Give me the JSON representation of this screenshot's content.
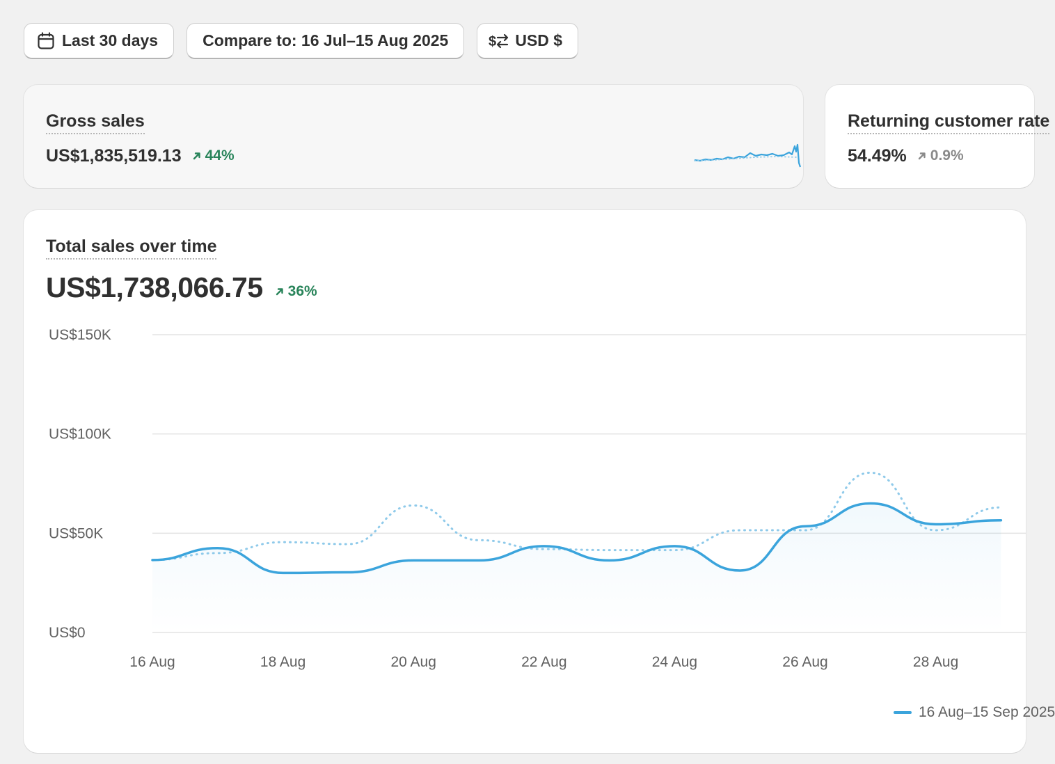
{
  "filters": {
    "date_range": {
      "label": "Last 30 days",
      "icon": "calendar-icon"
    },
    "compare": {
      "label": "Compare to: 16 Jul–15 Aug 2025"
    },
    "currency": {
      "label": "USD $",
      "icon": "swap-arrows-icon"
    }
  },
  "metrics": [
    {
      "title": "Gross sales",
      "value": "US$1,835,519.13",
      "delta": "44%",
      "trend": "up"
    },
    {
      "title": "Returning customer rate",
      "value": "54.49%",
      "delta": "0.9%",
      "trend": "up"
    }
  ],
  "sales_card": {
    "title": "Total sales over time",
    "value": "US$1,738,066.75",
    "delta": "36%"
  },
  "legend": {
    "current_label": "16 Aug–15 Sep 2025"
  },
  "colors": {
    "accent": "#3ba4dc",
    "positive": "#29845a",
    "neutral": "#8a8a8a"
  },
  "chart_data": {
    "type": "line",
    "x": [
      "16 Aug",
      "17 Aug",
      "18 Aug",
      "19 Aug",
      "20 Aug",
      "21 Aug",
      "22 Aug",
      "23 Aug",
      "24 Aug",
      "25 Aug",
      "26 Aug",
      "27 Aug",
      "28 Aug",
      "29 Aug"
    ],
    "x_tick_labels": [
      "16 Aug",
      "18 Aug",
      "20 Aug",
      "22 Aug",
      "24 Aug",
      "26 Aug",
      "28 Aug"
    ],
    "y_tick_labels": [
      "US$0",
      "US$50K",
      "US$100K",
      "US$150K"
    ],
    "y_ticks": [
      0,
      50000,
      100000,
      150000
    ],
    "ylim": [
      0,
      150000
    ],
    "grid": true,
    "legend_position": "bottom-right",
    "series": [
      {
        "name": "16 Aug–15 Sep 2025",
        "style": "solid",
        "values": [
          36500,
          42500,
          30000,
          30300,
          36300,
          36300,
          43500,
          36300,
          43500,
          31200,
          53500,
          65000,
          54500,
          56500
        ]
      },
      {
        "name": "",
        "style": "dotted",
        "values": [
          36500,
          40000,
          45500,
          44500,
          64000,
          46500,
          42000,
          41500,
          41500,
          51500,
          51500,
          80500,
          51500,
          63000
        ]
      }
    ]
  }
}
